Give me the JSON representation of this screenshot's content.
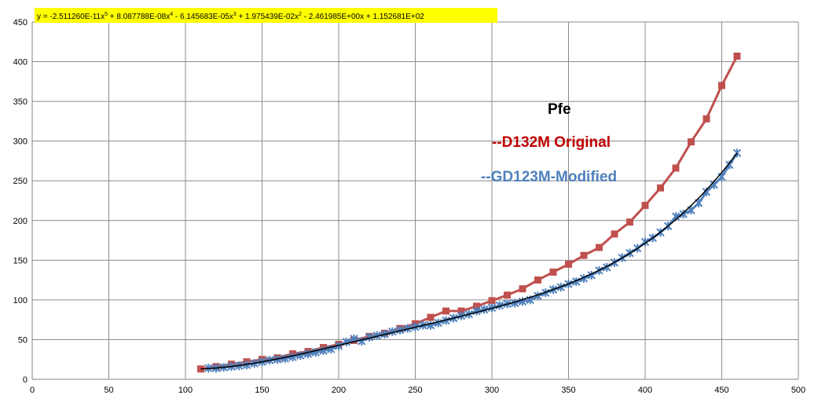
{
  "chart_data": {
    "type": "scatter",
    "title": "Pfe",
    "xlim": [
      0,
      500
    ],
    "ylim": [
      0,
      450
    ],
    "x_ticks": [
      "0",
      "50",
      "100",
      "150",
      "200",
      "250",
      "300",
      "350",
      "400",
      "450",
      "500"
    ],
    "y_ticks": [
      "0",
      "50",
      "100",
      "150",
      "200",
      "250",
      "300",
      "350",
      "400",
      "450"
    ],
    "grid": true,
    "trendline_equation": {
      "parts": [
        {
          "t": "y = -2.511260E-11x"
        },
        {
          "sup": "5"
        },
        {
          "t": " + 8.087788E-08x"
        },
        {
          "sup": "4"
        },
        {
          "t": " - 6.145683E-05x"
        },
        {
          "sup": "3"
        },
        {
          "t": " + 1.975439E-02x"
        },
        {
          "sup": "2"
        },
        {
          "t": " - 2.461985E+00x + 1.152681E+02"
        }
      ],
      "coefficients": [
        -2.51126e-11,
        8.087788e-08,
        -6.145683e-05,
        0.01975439,
        -2.461985,
        115.2681
      ],
      "x_range": [
        110,
        460
      ],
      "color": "#000000"
    },
    "series": [
      {
        "name": "D132M Original",
        "legend_label": "--D132M Original",
        "color": "#c0504d",
        "text_color": "#c00000",
        "marker": "square",
        "x": [
          110,
          120,
          130,
          140,
          150,
          160,
          170,
          180,
          190,
          200,
          210,
          220,
          230,
          240,
          250,
          260,
          270,
          280,
          290,
          300,
          310,
          320,
          330,
          340,
          350,
          360,
          370,
          380,
          390,
          400,
          410,
          420,
          430,
          440,
          450,
          460
        ],
        "y": [
          13,
          16,
          19,
          22,
          25,
          27,
          32,
          35,
          40,
          44,
          49,
          54,
          58,
          64,
          70,
          78,
          86,
          86,
          92,
          99,
          106,
          114,
          125,
          135,
          145,
          156,
          166,
          183,
          198,
          219,
          241,
          266,
          299,
          328,
          370,
          407
        ]
      },
      {
        "name": "GD123M-Modified",
        "legend_label": "--GD123M-Modified",
        "color": "#4f81bd",
        "text_color": "#4f81bd",
        "marker": "star",
        "x": [
          115,
          120,
          125,
          130,
          135,
          140,
          145,
          150,
          155,
          160,
          165,
          170,
          175,
          180,
          185,
          190,
          195,
          200,
          205,
          210,
          215,
          220,
          225,
          230,
          235,
          240,
          245,
          250,
          255,
          260,
          265,
          270,
          275,
          280,
          285,
          290,
          295,
          300,
          305,
          310,
          315,
          320,
          325,
          330,
          335,
          340,
          345,
          350,
          355,
          360,
          365,
          370,
          375,
          380,
          385,
          390,
          395,
          400,
          405,
          410,
          415,
          420,
          425,
          430,
          435,
          440,
          445,
          450,
          455,
          460
        ],
        "y": [
          14,
          14,
          15,
          16,
          17,
          18,
          20,
          22,
          24,
          25,
          26,
          28,
          30,
          32,
          34,
          36,
          38,
          42,
          47,
          51,
          48,
          53,
          55,
          57,
          60,
          62,
          64,
          66,
          68,
          68,
          71,
          74,
          77,
          80,
          82,
          86,
          88,
          90,
          93,
          95,
          96,
          98,
          100,
          105,
          109,
          113,
          116,
          120,
          123,
          127,
          131,
          137,
          141,
          147,
          153,
          159,
          165,
          173,
          178,
          185,
          193,
          205,
          208,
          213,
          222,
          236,
          245,
          255,
          270,
          285
        ]
      }
    ]
  }
}
